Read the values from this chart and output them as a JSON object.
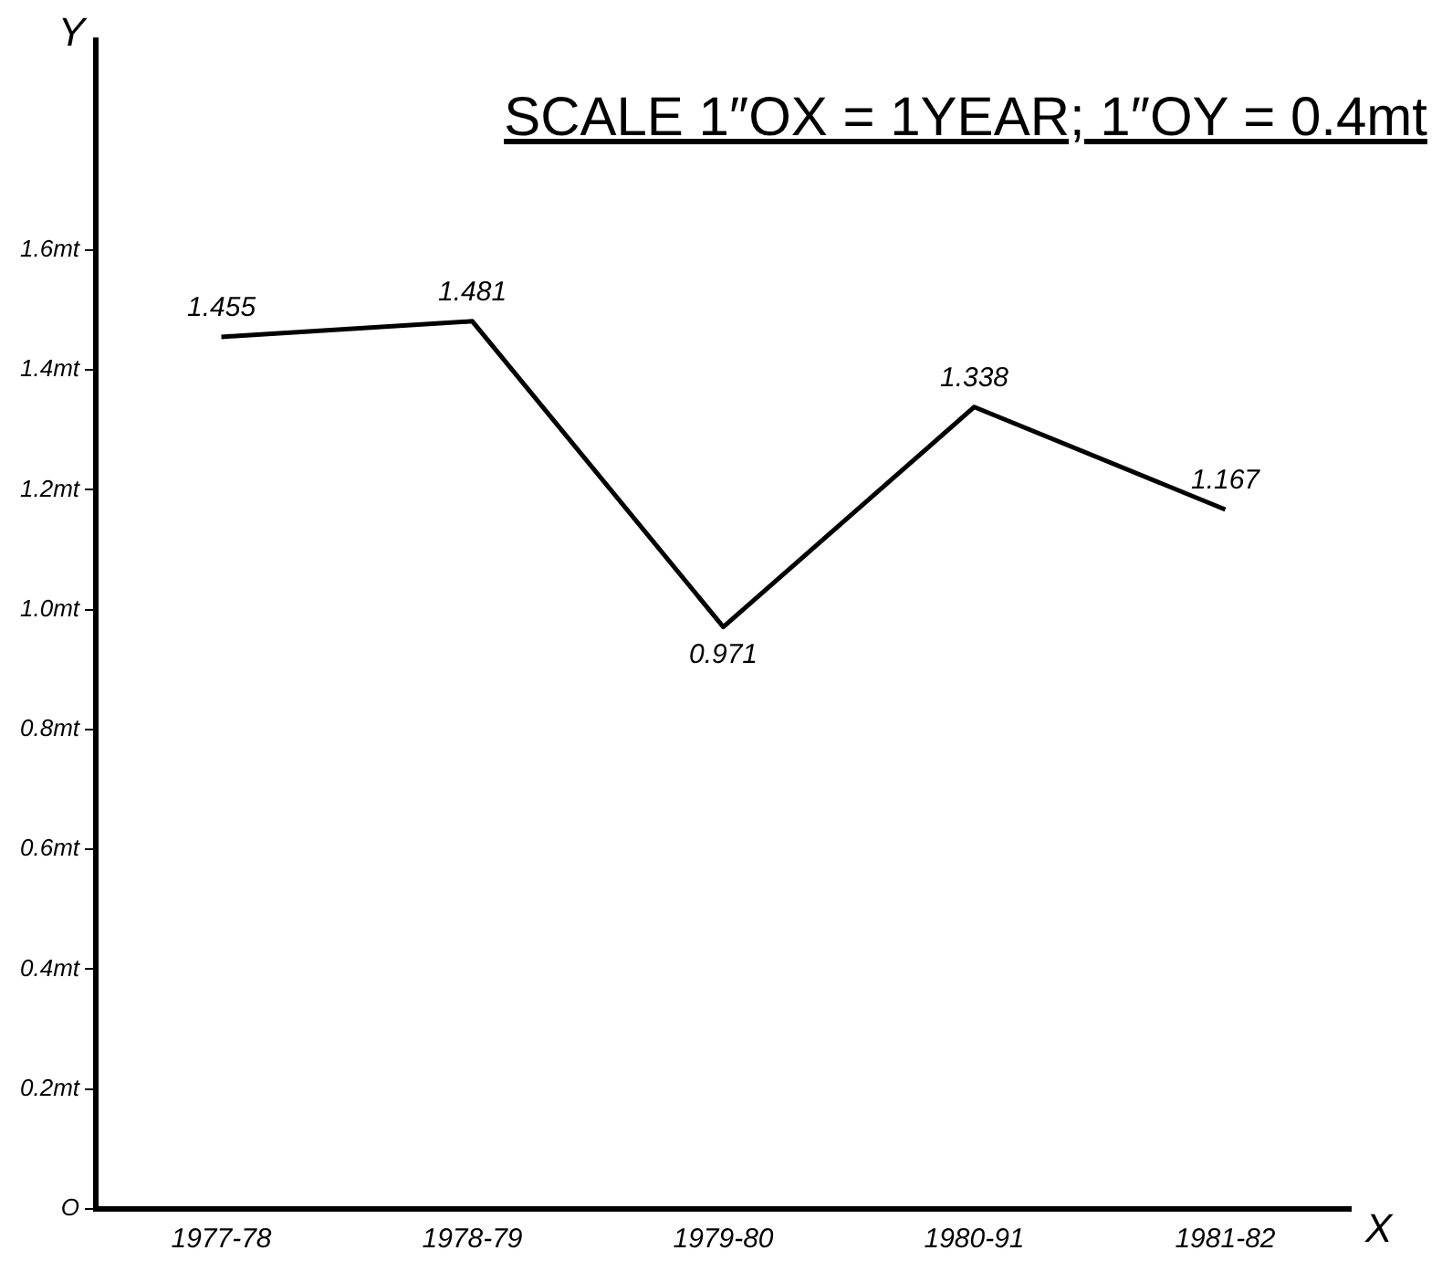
{
  "chart_data": {
    "type": "line",
    "title": "SCALE 1″OX = 1YEAR; 1″OY = 0.4mt",
    "xlabel": "X",
    "ylabel": "Y",
    "categories": [
      "1977-78",
      "1978-79",
      "1979-80",
      "1980-91",
      "1981-82"
    ],
    "series": [
      {
        "color": "#000000",
        "values": [
          1.455,
          1.481,
          0.971,
          1.338,
          1.167
        ]
      }
    ],
    "ylim": [
      0,
      1.95
    ],
    "yticks": [
      {
        "value": 0,
        "label": "O"
      },
      {
        "value": 0.2,
        "label": "0.2mt"
      },
      {
        "value": 0.4,
        "label": "0.4mt"
      },
      {
        "value": 0.6,
        "label": "0.6mt"
      },
      {
        "value": 0.8,
        "label": "0.8mt"
      },
      {
        "value": 1.0,
        "label": "1.0mt"
      },
      {
        "value": 1.2,
        "label": "1.2mt"
      },
      {
        "value": 1.4,
        "label": "1.4mt"
      },
      {
        "value": 1.6,
        "label": "1.6mt"
      }
    ],
    "data_labels": true,
    "marker": "none",
    "line_style": "solid",
    "legend": false,
    "grid": false
  }
}
